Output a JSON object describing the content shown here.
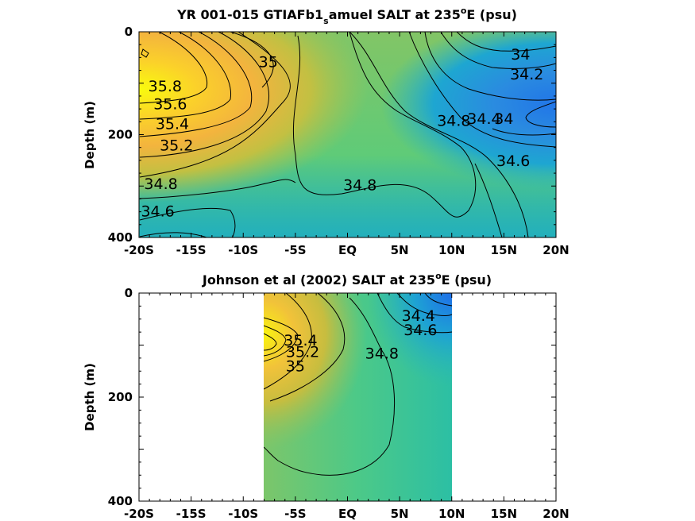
{
  "chart_data": [
    {
      "type": "heatmap",
      "title_main": "YR 001-015 GTIAFb1",
      "title_sub": "s",
      "title_rest": "amuel SALT at 235",
      "title_sup": "o",
      "title_end": "E (psu)",
      "ylabel": "Depth (m)",
      "x_ticks": [
        "-20S",
        "-15S",
        "-10S",
        "-5S",
        "EQ",
        "5N",
        "10N",
        "15N",
        "20N"
      ],
      "x_values": [
        -20,
        -15,
        -10,
        -5,
        0,
        5,
        10,
        15,
        20
      ],
      "y_ticks": [
        "0",
        "200",
        "400"
      ],
      "y_values": [
        0,
        200,
        400
      ],
      "xlim": [
        -20,
        20
      ],
      "ylim": [
        0,
        400
      ],
      "y_reversed": true,
      "colormap": "parula",
      "contour_labels": [
        {
          "text": "35.8",
          "x": -17.5,
          "y": 105
        },
        {
          "text": "35.6",
          "x": -17.0,
          "y": 140
        },
        {
          "text": "35.4",
          "x": -16.8,
          "y": 178
        },
        {
          "text": "35.2",
          "x": -16.4,
          "y": 220
        },
        {
          "text": "34.8",
          "x": -17.9,
          "y": 295
        },
        {
          "text": "34.6",
          "x": -18.2,
          "y": 348
        },
        {
          "text": "35",
          "x": -7.6,
          "y": 58
        },
        {
          "text": "34.8",
          "x": 1.2,
          "y": 297
        },
        {
          "text": "34.8",
          "x": 10.2,
          "y": 172
        },
        {
          "text": "34",
          "x": 16.6,
          "y": 43
        },
        {
          "text": "34.2",
          "x": 17.2,
          "y": 82
        },
        {
          "text": "34.4",
          "x": 13.1,
          "y": 168
        },
        {
          "text": "34",
          "x": 15.0,
          "y": 168
        },
        {
          "text": "34.6",
          "x": 15.9,
          "y": 250
        }
      ]
    },
    {
      "type": "heatmap",
      "title_main": "Johnson et al (2002) SALT at 235",
      "title_sup": "o",
      "title_end": "E (psu)",
      "ylabel": "Depth (m)",
      "x_ticks": [
        "-20S",
        "-15S",
        "-10S",
        "-5S",
        "EQ",
        "5N",
        "10N",
        "15N",
        "20N"
      ],
      "x_values": [
        -20,
        -15,
        -10,
        -5,
        0,
        5,
        10,
        15,
        20
      ],
      "y_ticks": [
        "0",
        "200",
        "400"
      ],
      "y_values": [
        0,
        200,
        400
      ],
      "xlim": [
        -20,
        20
      ],
      "ylim": [
        0,
        400
      ],
      "y_reversed": true,
      "data_xrange": [
        -8,
        10
      ],
      "colormap": "parula",
      "contour_labels": [
        {
          "text": "35.4",
          "x": -4.5,
          "y": 90
        },
        {
          "text": "35.2",
          "x": -4.3,
          "y": 112
        },
        {
          "text": "35",
          "x": -5.0,
          "y": 140
        },
        {
          "text": "34.8",
          "x": 3.3,
          "y": 115
        },
        {
          "text": "34.4",
          "x": 6.8,
          "y": 43
        },
        {
          "text": "34.6",
          "x": 7.0,
          "y": 70
        }
      ]
    }
  ]
}
